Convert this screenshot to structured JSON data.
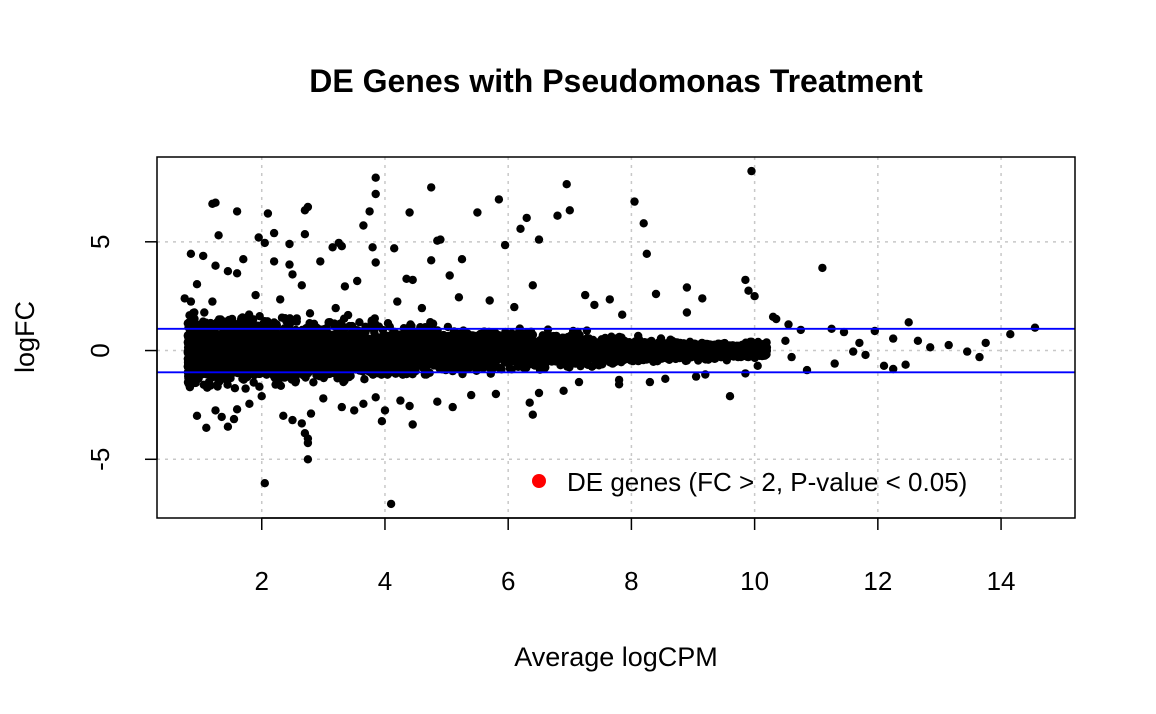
{
  "chart_data": {
    "type": "scatter",
    "title": "DE Genes with Pseudomonas Treatment",
    "xlabel": "Average logCPM",
    "ylabel": "logFC",
    "xlim": [
      0.3,
      15.2
    ],
    "ylim": [
      -7.7,
      8.9
    ],
    "x_ticks": [
      2,
      4,
      6,
      8,
      10,
      12,
      14
    ],
    "y_ticks": [
      -5,
      0,
      5
    ],
    "grid": true,
    "grid_style": "dotted",
    "reference_lines": [
      1,
      -1
    ],
    "reference_line_color": "#0000ff",
    "point_color": "#000000",
    "legend": {
      "position": "bottom-right",
      "entries": [
        {
          "label": "DE genes (FC > 2, P-value < 0.05)",
          "color": "#ff0000",
          "marker": "circle"
        }
      ]
    },
    "series": [
      {
        "color": "#000000",
        "points": [
          [
            9.95,
            8.25
          ],
          [
            3.85,
            7.95
          ],
          [
            4.75,
            7.5
          ],
          [
            6.95,
            7.65
          ],
          [
            3.85,
            7.2
          ],
          [
            5.85,
            6.95
          ],
          [
            8.05,
            6.85
          ],
          [
            1.2,
            6.75
          ],
          [
            1.25,
            6.8
          ],
          [
            2.75,
            6.6
          ],
          [
            2.7,
            6.45
          ],
          [
            1.6,
            6.4
          ],
          [
            5.5,
            6.35
          ],
          [
            7.0,
            6.45
          ],
          [
            2.1,
            6.3
          ],
          [
            3.75,
            6.4
          ],
          [
            4.4,
            6.35
          ],
          [
            6.8,
            6.2
          ],
          [
            6.3,
            6.1
          ],
          [
            8.2,
            5.85
          ],
          [
            3.65,
            5.75
          ],
          [
            6.2,
            5.6
          ],
          [
            2.7,
            5.35
          ],
          [
            1.3,
            5.3
          ],
          [
            2.2,
            5.4
          ],
          [
            1.95,
            5.2
          ],
          [
            4.9,
            5.1
          ],
          [
            4.85,
            5.05
          ],
          [
            6.5,
            5.1
          ],
          [
            3.25,
            4.95
          ],
          [
            3.15,
            4.75
          ],
          [
            3.3,
            4.8
          ],
          [
            5.95,
            4.85
          ],
          [
            2.05,
            4.95
          ],
          [
            3.8,
            4.75
          ],
          [
            2.45,
            4.9
          ],
          [
            4.15,
            4.7
          ],
          [
            0.85,
            4.45
          ],
          [
            1.05,
            4.35
          ],
          [
            1.7,
            4.2
          ],
          [
            8.25,
            4.45
          ],
          [
            2.95,
            4.1
          ],
          [
            3.85,
            4.05
          ],
          [
            4.75,
            4.15
          ],
          [
            5.25,
            4.2
          ],
          [
            2.2,
            4.1
          ],
          [
            2.45,
            3.95
          ],
          [
            1.25,
            3.9
          ],
          [
            1.45,
            3.65
          ],
          [
            11.1,
            3.8
          ],
          [
            9.85,
            3.25
          ],
          [
            4.35,
            3.3
          ],
          [
            4.45,
            3.25
          ],
          [
            3.55,
            3.2
          ],
          [
            5.05,
            3.45
          ],
          [
            1.6,
            3.55
          ],
          [
            2.5,
            3.5
          ],
          [
            0.95,
            3.05
          ],
          [
            2.65,
            3.0
          ],
          [
            6.4,
            3.0
          ],
          [
            3.35,
            2.95
          ],
          [
            9.9,
            2.75
          ],
          [
            10.0,
            2.5
          ],
          [
            7.25,
            2.55
          ],
          [
            7.65,
            2.35
          ],
          [
            8.4,
            2.6
          ],
          [
            9.15,
            2.4
          ],
          [
            8.9,
            2.9
          ],
          [
            0.75,
            2.4
          ],
          [
            0.85,
            2.25
          ],
          [
            1.2,
            2.25
          ],
          [
            1.9,
            2.55
          ],
          [
            2.3,
            2.35
          ],
          [
            4.2,
            2.25
          ],
          [
            5.2,
            2.45
          ],
          [
            5.7,
            2.3
          ],
          [
            7.4,
            2.1
          ],
          [
            6.1,
            2.0
          ],
          [
            4.6,
            1.95
          ],
          [
            3.2,
            1.95
          ],
          [
            8.9,
            1.75
          ],
          [
            7.85,
            1.65
          ],
          [
            10.3,
            1.55
          ],
          [
            10.35,
            1.45
          ],
          [
            10.55,
            1.2
          ],
          [
            10.75,
            0.95
          ],
          [
            11.25,
            1.0
          ],
          [
            11.45,
            0.85
          ],
          [
            11.95,
            0.9
          ],
          [
            12.5,
            1.3
          ],
          [
            12.65,
            0.45
          ],
          [
            12.25,
            0.55
          ],
          [
            11.7,
            0.35
          ],
          [
            13.15,
            0.25
          ],
          [
            13.45,
            -0.05
          ],
          [
            13.75,
            0.35
          ],
          [
            14.15,
            0.75
          ],
          [
            14.55,
            1.05
          ],
          [
            13.65,
            -0.3
          ],
          [
            12.85,
            0.15
          ],
          [
            12.45,
            -0.65
          ],
          [
            11.8,
            -0.2
          ],
          [
            12.1,
            -0.7
          ],
          [
            12.25,
            -0.85
          ],
          [
            11.3,
            -0.6
          ],
          [
            11.6,
            -0.05
          ],
          [
            10.85,
            -0.9
          ],
          [
            10.6,
            -0.3
          ],
          [
            10.2,
            0.15
          ],
          [
            10.5,
            0.45
          ],
          [
            10.05,
            -0.7
          ],
          [
            9.85,
            -1.05
          ],
          [
            9.6,
            -2.1
          ],
          [
            9.2,
            -1.1
          ],
          [
            8.55,
            -1.3
          ],
          [
            7.8,
            -1.55
          ],
          [
            7.15,
            -1.45
          ],
          [
            6.5,
            -1.95
          ],
          [
            6.4,
            -2.95
          ],
          [
            5.4,
            -2.05
          ],
          [
            4.85,
            -2.35
          ],
          [
            4.4,
            -2.55
          ],
          [
            4.0,
            -2.75
          ],
          [
            3.85,
            -2.15
          ],
          [
            3.65,
            -2.45
          ],
          [
            3.3,
            -2.6
          ],
          [
            2.8,
            -2.9
          ],
          [
            2.65,
            -3.35
          ],
          [
            2.7,
            -3.8
          ],
          [
            2.75,
            -4.05
          ],
          [
            2.75,
            -4.25
          ],
          [
            2.75,
            -5.0
          ],
          [
            2.35,
            -3.0
          ],
          [
            2.5,
            -3.2
          ],
          [
            1.45,
            -3.5
          ],
          [
            1.55,
            -3.15
          ],
          [
            1.1,
            -3.55
          ],
          [
            0.95,
            -3.0
          ],
          [
            1.25,
            -2.75
          ],
          [
            1.8,
            -2.45
          ],
          [
            2.05,
            -6.1
          ],
          [
            4.1,
            -7.05
          ],
          [
            4.45,
            -3.4
          ],
          [
            3.95,
            -3.25
          ],
          [
            6.35,
            -2.4
          ],
          [
            5.1,
            -2.6
          ],
          [
            4.25,
            -2.3
          ],
          [
            2.0,
            -2.1
          ],
          [
            3.0,
            -2.2
          ],
          [
            1.6,
            -2.7
          ],
          [
            1.35,
            -3.05
          ],
          [
            3.5,
            -2.75
          ],
          [
            7.8,
            -1.35
          ],
          [
            8.3,
            -1.45
          ],
          [
            6.9,
            -1.85
          ],
          [
            5.8,
            -2.0
          ],
          [
            9.05,
            -1.2
          ]
        ],
        "dense_band": {
          "logcpm_range": [
            0.8,
            10.2
          ],
          "logfc_range": [
            -1.5,
            1.5
          ],
          "description": "thousands of overlapping points forming a solid black band around logFC 0"
        }
      }
    ]
  }
}
